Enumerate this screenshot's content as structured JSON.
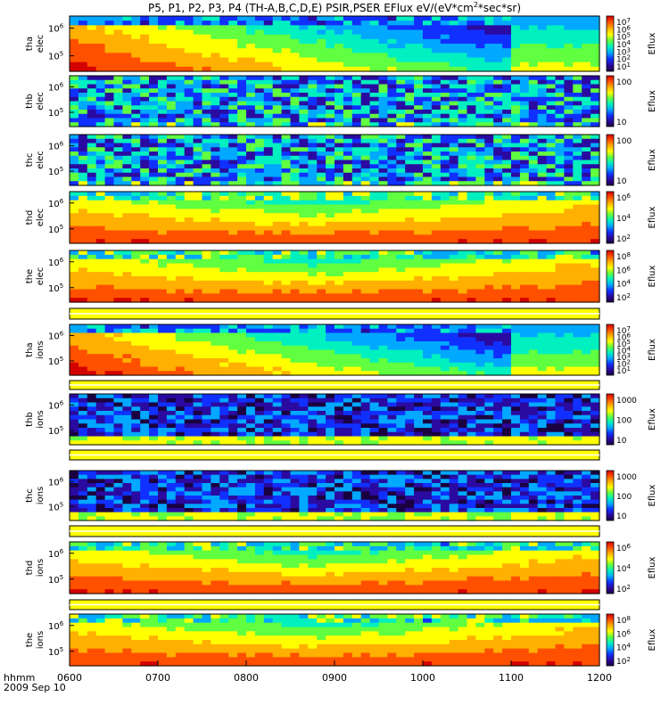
{
  "title": "P5, P1, P2, P3, P4 (TH-A,B,C,D,E) PSIR,PSER EFlux eV/(eV*cm",
  "title_sup": "2",
  "title_tail": "*sec*sr)",
  "time_axis_label": "hhmm",
  "date_label": "2009 Sep 10",
  "x_ticks": [
    "0600",
    "0700",
    "0800",
    "0900",
    "1000",
    "1100",
    "1200"
  ],
  "colorbar_label": "Eflux",
  "colors": {
    "spectrum": [
      "#1a0040",
      "#2a0aa0",
      "#1030ff",
      "#00a8ff",
      "#00f0c0",
      "#60ff40",
      "#ffff00",
      "#ffb000",
      "#ff5000",
      "#d40000"
    ],
    "panel_bg": "#ffffff",
    "strip_fill": "#ffff00"
  },
  "chart_data": {
    "type": "heatmap",
    "x_range": [
      "0600",
      "1200"
    ],
    "panels": [
      {
        "probe": "tha",
        "species": "elec",
        "y_ticks": [
          "10^6",
          "10^5"
        ],
        "cbar_ticks": [
          "10^7",
          "10^6",
          "10^5",
          "10^4",
          "10^3",
          "10^2",
          "10^1"
        ],
        "pattern": "hot-decay",
        "scale": "log"
      },
      {
        "probe": "thb",
        "species": "elec",
        "y_ticks": [
          "10^6",
          "10^5"
        ],
        "cbar_ticks": [
          "100",
          "10"
        ],
        "pattern": "noise",
        "scale": "log"
      },
      {
        "probe": "thc",
        "species": "elec",
        "y_ticks": [
          "10^6",
          "10^5"
        ],
        "cbar_ticks": [
          "100",
          "10"
        ],
        "pattern": "noise",
        "scale": "log"
      },
      {
        "probe": "thd",
        "species": "elec",
        "y_ticks": [
          "10^6",
          "10^5"
        ],
        "cbar_ticks": [
          "10^6",
          "10^4",
          "10^2"
        ],
        "pattern": "butterfly",
        "scale": "log"
      },
      {
        "probe": "the",
        "species": "elec",
        "y_ticks": [
          "10^6",
          "10^5"
        ],
        "cbar_ticks": [
          "10^8",
          "10^6",
          "10^4",
          "10^2"
        ],
        "pattern": "butterfly",
        "scale": "log"
      },
      {
        "probe": "tha",
        "species": "ions",
        "y_ticks": [
          "10^6",
          "10^5"
        ],
        "cbar_ticks": [
          "10^7",
          "10^6",
          "10^5",
          "10^4",
          "10^3",
          "10^2",
          "10^1"
        ],
        "pattern": "hot-decay",
        "scale": "log"
      },
      {
        "probe": "thb",
        "species": "ions",
        "y_ticks": [
          "10^6",
          "10^5"
        ],
        "cbar_ticks": [
          "1000",
          "100",
          "10"
        ],
        "pattern": "noise-band",
        "scale": "log"
      },
      {
        "probe": "thc",
        "species": "ions",
        "y_ticks": [
          "10^6",
          "10^5"
        ],
        "cbar_ticks": [
          "1000",
          "100",
          "10"
        ],
        "pattern": "noise-band",
        "scale": "log"
      },
      {
        "probe": "thd",
        "species": "ions",
        "y_ticks": [
          "10^6",
          "10^5"
        ],
        "cbar_ticks": [
          "10^6",
          "10^4",
          "10^2"
        ],
        "pattern": "butterfly",
        "scale": "log"
      },
      {
        "probe": "the",
        "species": "ions",
        "y_ticks": [
          "10^6",
          "10^5"
        ],
        "cbar_ticks": [
          "10^8",
          "10^6",
          "10^4",
          "10^2"
        ],
        "pattern": "butterfly",
        "scale": "log"
      }
    ]
  }
}
